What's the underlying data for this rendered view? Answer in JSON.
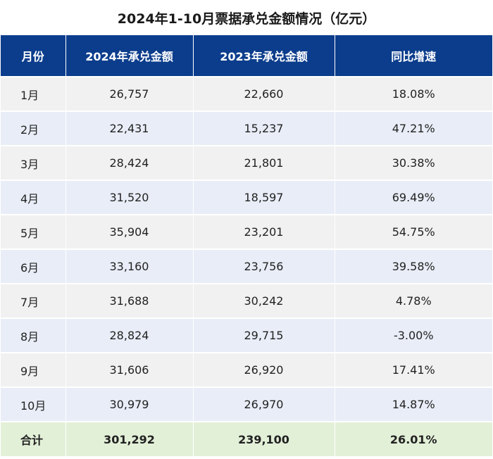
{
  "title": "2024年1-10月票据承兑金额情况（亿元）",
  "chart_data": {
    "type": "table",
    "columns": [
      "月份",
      "2024年承兑金额",
      "2023年承兑金额",
      "同比增速"
    ],
    "rows": [
      [
        "1月",
        "26,757",
        "22,660",
        "18.08%"
      ],
      [
        "2月",
        "22,431",
        "15,237",
        "47.21%"
      ],
      [
        "3月",
        "28,424",
        "21,801",
        "30.38%"
      ],
      [
        "4月",
        "31,520",
        "18,597",
        "69.49%"
      ],
      [
        "5月",
        "35,904",
        "23,201",
        "54.75%"
      ],
      [
        "6月",
        "33,160",
        "23,756",
        "39.58%"
      ],
      [
        "7月",
        "31,688",
        "30,242",
        "4.78%"
      ],
      [
        "8月",
        "28,824",
        "29,715",
        "-3.00%"
      ],
      [
        "9月",
        "31,606",
        "26,920",
        "17.41%"
      ],
      [
        "10月",
        "30,979",
        "26,970",
        "14.87%"
      ]
    ],
    "total": [
      "合计",
      "301,292",
      "239,100",
      "26.01%"
    ]
  },
  "colors": {
    "header_bg": "#0b3d8c",
    "row_odd_bg": "#f1f1f1",
    "row_even_bg": "#e8edf7",
    "total_bg": "#e3f0d8"
  }
}
